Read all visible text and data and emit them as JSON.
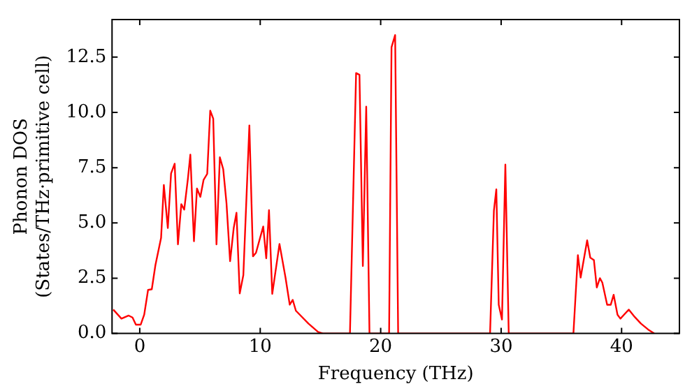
{
  "chart_data": {
    "type": "line",
    "xlabel": "Frequency (THz)",
    "ylabel": "Phonon DOS\n(States/THz·primitive cell)",
    "xlim": [
      -2.3,
      44.8
    ],
    "ylim": [
      0,
      14.2
    ],
    "xticks": [
      0,
      10,
      20,
      30,
      40
    ],
    "yticks": [
      {
        "value": 0,
        "label": "0.0"
      },
      {
        "value": 2.5,
        "label": "2.5"
      },
      {
        "value": 5,
        "label": "5.0"
      },
      {
        "value": 7.5,
        "label": "7.5"
      },
      {
        "value": 10,
        "label": "10.0"
      },
      {
        "value": 12.5,
        "label": "12.5"
      }
    ],
    "grid": false,
    "legend": false,
    "marker": "none",
    "line_style": "solid",
    "series": [
      {
        "color": "#ff0000",
        "x": [
          -2.2,
          -1.52,
          -0.92,
          -0.6,
          -0.32,
          0.08,
          0.37,
          0.69,
          1.0,
          1.3,
          1.77,
          2.0,
          2.33,
          2.6,
          2.9,
          3.17,
          3.45,
          3.69,
          4.0,
          4.2,
          4.5,
          4.75,
          5.03,
          5.3,
          5.6,
          5.85,
          6.1,
          6.37,
          6.65,
          6.93,
          7.2,
          7.5,
          7.8,
          8.03,
          8.3,
          8.6,
          9.1,
          9.4,
          9.65,
          10.25,
          10.5,
          10.73,
          11.0,
          11.6,
          12.1,
          12.45,
          12.7,
          12.96,
          14.0,
          14.8,
          15.2,
          17.45,
          17.96,
          18.24,
          18.52,
          18.8,
          19.07,
          20.7,
          20.9,
          21.2,
          21.45,
          29.08,
          29.4,
          29.6,
          29.8,
          30.07,
          30.35,
          30.63,
          36.0,
          36.37,
          36.6,
          37.14,
          37.4,
          37.7,
          37.94,
          38.2,
          38.4,
          38.8,
          39.1,
          39.34,
          39.66,
          39.9,
          40.2,
          40.6,
          41.1,
          41.6,
          42.2,
          42.7
        ],
        "values": [
          1.08,
          0.67,
          0.81,
          0.72,
          0.4,
          0.4,
          0.85,
          1.97,
          2.0,
          3.09,
          4.32,
          6.72,
          4.77,
          7.24,
          7.68,
          4.03,
          5.85,
          5.6,
          7.01,
          8.09,
          4.17,
          6.56,
          6.18,
          6.95,
          7.22,
          10.08,
          9.72,
          4.03,
          7.97,
          7.43,
          5.9,
          3.27,
          4.77,
          5.46,
          1.81,
          2.64,
          9.41,
          3.49,
          3.65,
          4.84,
          3.4,
          5.58,
          1.79,
          4.05,
          2.53,
          1.3,
          1.52,
          1.03,
          0.45,
          0.07,
          0,
          0,
          11.78,
          11.7,
          3.05,
          10.26,
          0,
          0,
          12.95,
          13.5,
          0,
          0,
          5.56,
          6.52,
          1.3,
          0.63,
          7.64,
          0,
          0,
          3.54,
          2.53,
          4.21,
          3.43,
          3.32,
          2.08,
          2.5,
          2.3,
          1.3,
          1.3,
          1.75,
          0.85,
          0.67,
          0.85,
          1.08,
          0.74,
          0.45,
          0.18,
          0
        ]
      }
    ]
  }
}
